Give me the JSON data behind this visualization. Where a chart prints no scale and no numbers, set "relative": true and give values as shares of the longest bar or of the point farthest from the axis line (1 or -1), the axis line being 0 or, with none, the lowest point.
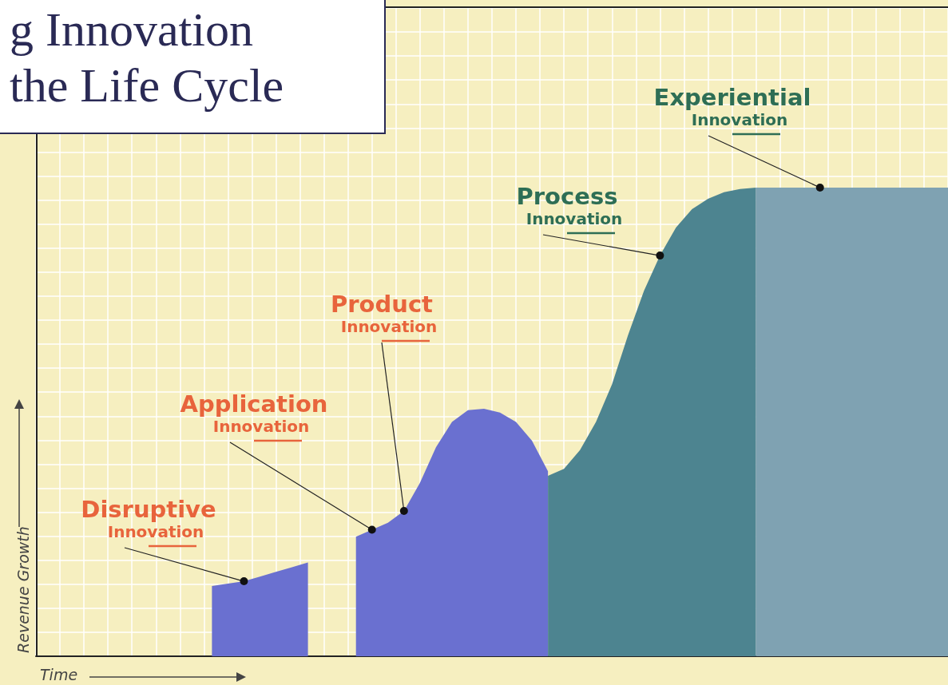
{
  "chart_data": {
    "type": "area",
    "title": "g Innovation\nthe Life Cycle",
    "xlabel": "Time",
    "ylabel": "Revenue Growth",
    "relative": true,
    "grid": true,
    "categories": [
      null,
      null,
      null,
      null,
      null,
      null,
      null,
      null,
      null,
      null,
      null,
      null,
      null,
      null,
      null,
      null,
      null,
      null,
      null,
      null,
      null,
      null,
      null,
      null,
      null,
      null,
      null,
      null,
      null,
      null,
      null,
      null,
      null,
      null,
      null,
      null,
      null,
      null,
      null,
      null,
      null,
      null,
      null,
      null,
      null,
      null,
      null,
      null,
      null,
      null,
      null,
      null,
      null,
      null,
      null,
      null,
      null,
      null
    ],
    "annotations": [
      "Disruptive Innovation",
      "Application Innovation",
      "Product Innovation",
      "Process Innovation",
      "Experiential Innovation"
    ],
    "series": [
      {
        "color": "#6a70d0",
        "values": [
          null,
          null,
          null,
          null,
          null,
          null,
          null,
          null,
          null,
          null,
          null,
          0.15,
          0.155,
          0.16,
          0.17,
          0.18,
          0.19,
          0.2,
          null,
          null,
          null,
          null,
          null,
          null,
          null,
          null,
          null,
          null,
          null,
          null,
          null,
          null,
          null,
          null,
          null,
          null,
          null,
          null,
          null,
          null,
          null,
          null,
          null,
          null,
          null,
          null,
          null,
          null,
          null,
          null,
          null,
          null,
          null,
          null,
          null,
          null,
          null,
          null
        ]
      },
      {
        "color": "#6a70d0",
        "values": [
          null,
          null,
          null,
          null,
          null,
          null,
          null,
          null,
          null,
          null,
          null,
          null,
          null,
          null,
          null,
          null,
          null,
          null,
          null,
          null,
          0.255,
          0.27,
          0.285,
          0.31,
          0.37,
          0.446,
          0.5,
          0.525,
          0.528,
          0.52,
          0.5,
          0.46,
          0.395,
          null,
          null,
          null,
          null,
          null,
          null,
          null,
          null,
          null,
          null,
          null,
          null,
          null,
          null,
          null,
          null,
          null,
          null,
          null,
          null,
          null,
          null,
          null,
          null,
          null
        ]
      },
      {
        "color": "#4d8490",
        "values": [
          null,
          null,
          null,
          null,
          null,
          null,
          null,
          null,
          null,
          null,
          null,
          null,
          null,
          null,
          null,
          null,
          null,
          null,
          null,
          null,
          null,
          null,
          null,
          null,
          null,
          null,
          null,
          null,
          null,
          null,
          null,
          null,
          0.385,
          0.4,
          0.44,
          0.5,
          0.58,
          0.685,
          0.78,
          0.855,
          0.915,
          0.954,
          0.976,
          0.99,
          0.997,
          1,
          null,
          null,
          null,
          null,
          null,
          null,
          null,
          null,
          null,
          null,
          null,
          null
        ]
      },
      {
        "color": "#7fa2b2",
        "values": [
          null,
          null,
          null,
          null,
          null,
          null,
          null,
          null,
          null,
          null,
          null,
          null,
          null,
          null,
          null,
          null,
          null,
          null,
          null,
          null,
          null,
          null,
          null,
          null,
          null,
          null,
          null,
          null,
          null,
          null,
          null,
          null,
          null,
          null,
          null,
          null,
          null,
          null,
          null,
          null,
          null,
          null,
          null,
          null,
          null,
          1,
          1,
          1,
          1,
          1,
          1,
          1,
          1,
          1,
          1,
          1,
          1,
          1
        ]
      }
    ]
  }
}
